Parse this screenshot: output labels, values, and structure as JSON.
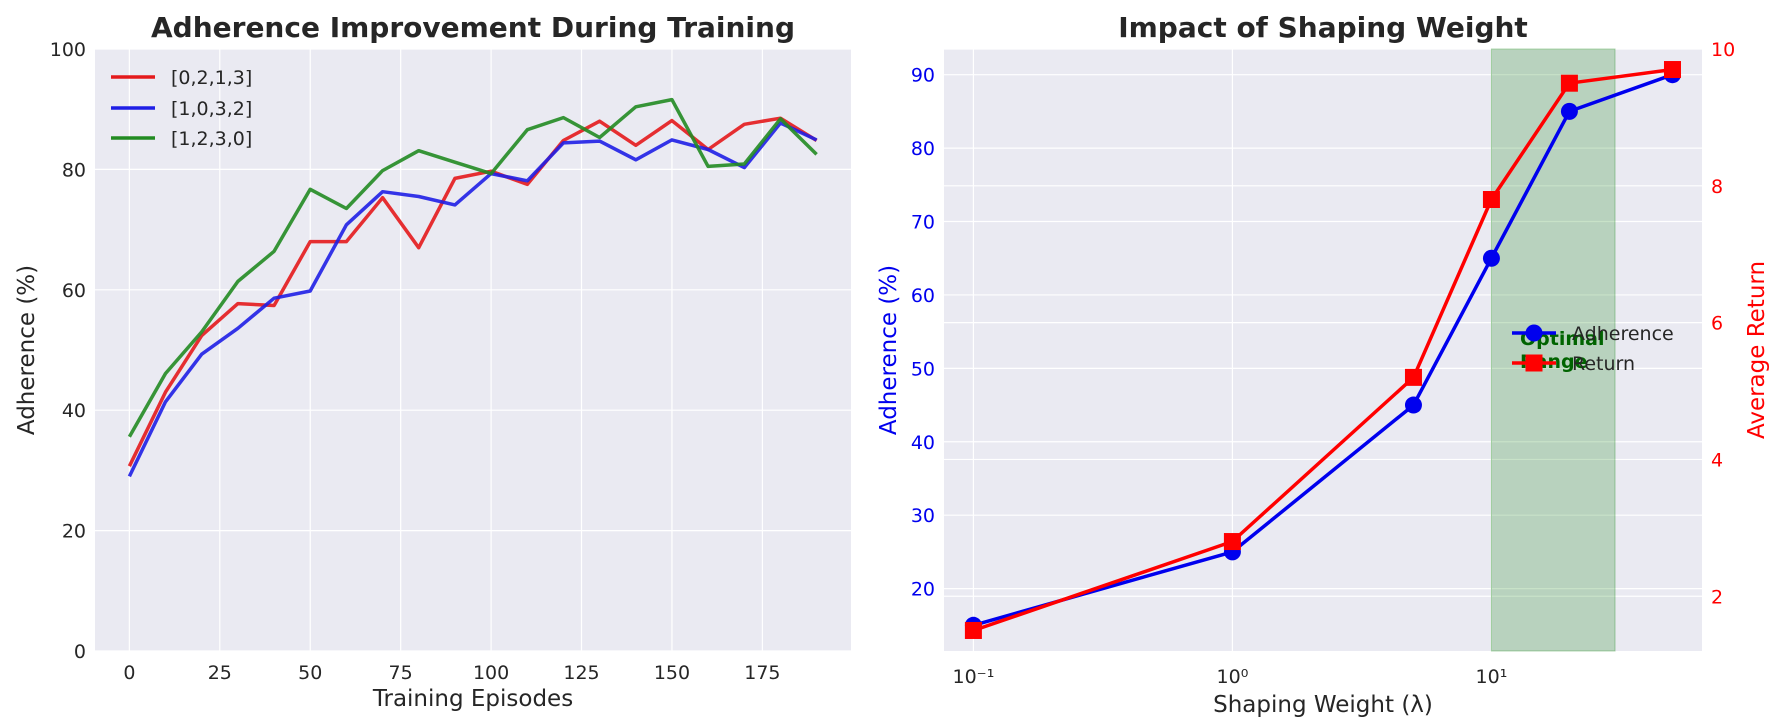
{
  "chart_data": [
    {
      "type": "line",
      "title": "Adherence Improvement During Training",
      "xlabel": "Training Episodes",
      "ylabel": "Adherence (%)",
      "xlim": [
        -9.5,
        199.5
      ],
      "ylim": [
        0,
        100
      ],
      "xticks": [
        0,
        25,
        50,
        75,
        100,
        125,
        150,
        175
      ],
      "yticks": [
        0,
        20,
        40,
        60,
        80,
        100
      ],
      "grid": true,
      "legend_position": "top-left",
      "x": [
        0,
        10,
        20,
        30,
        40,
        50,
        60,
        70,
        80,
        90,
        100,
        110,
        120,
        130,
        140,
        150,
        160,
        170,
        180,
        190
      ],
      "series": [
        {
          "name": "[0,2,1,3]",
          "color": "#e41a1c",
          "values": [
            30.7,
            43.0,
            52.4,
            57.7,
            57.4,
            68.0,
            68.0,
            75.3,
            67.0,
            78.5,
            79.7,
            77.5,
            84.8,
            88.0,
            84.0,
            88.1,
            83.3,
            87.5,
            88.5,
            84.8
          ]
        },
        {
          "name": "[1,0,3,2]",
          "color": "#1f1fe6",
          "values": [
            29.0,
            41.4,
            49.3,
            53.6,
            58.6,
            59.8,
            70.8,
            76.3,
            75.5,
            74.1,
            79.3,
            78.1,
            84.4,
            84.7,
            81.6,
            84.9,
            83.3,
            80.3,
            87.7,
            84.9
          ]
        },
        {
          "name": "[1,2,3,0]",
          "color": "#228b22",
          "values": [
            35.6,
            46.1,
            53.0,
            61.4,
            66.4,
            76.7,
            73.5,
            79.8,
            83.1,
            81.2,
            79.3,
            86.6,
            88.6,
            85.3,
            90.4,
            91.6,
            80.5,
            80.9,
            88.4,
            82.5
          ]
        }
      ]
    },
    {
      "type": "line",
      "title": "Impact of Shaping Weight",
      "xlabel": "Shaping Weight (λ)",
      "ylabel": "Adherence (%)",
      "ylabel_right": "Average Return",
      "x_scale": "log",
      "xlim": [
        0.077,
        65
      ],
      "ylim": [
        11.5,
        93.5
      ],
      "ylim_right": [
        1.2,
        10.0
      ],
      "xticks": [
        0.1,
        1,
        10
      ],
      "xtick_labels": [
        "10⁻¹",
        "10⁰",
        "10¹"
      ],
      "yticks": [
        20,
        30,
        40,
        50,
        60,
        70,
        80,
        90
      ],
      "yticks_right": [
        2,
        4,
        6,
        8,
        10
      ],
      "grid": true,
      "legend_position": "center-right",
      "x": [
        0.1,
        1,
        5,
        10,
        20,
        50
      ],
      "series": [
        {
          "name": "Adherence",
          "axis": "left",
          "color": "#0000ee",
          "marker": "circle",
          "values": [
            15,
            25,
            45,
            65,
            85,
            90
          ]
        },
        {
          "name": "Return",
          "axis": "right",
          "color": "#ff0000",
          "marker": "square",
          "values": [
            1.5,
            2.8,
            5.2,
            7.8,
            9.5,
            9.7
          ]
        }
      ],
      "shaded_region": {
        "x": [
          10,
          30
        ],
        "color": "#228b22",
        "label_line1": "Optimal",
        "label_line2": "Range"
      }
    }
  ]
}
